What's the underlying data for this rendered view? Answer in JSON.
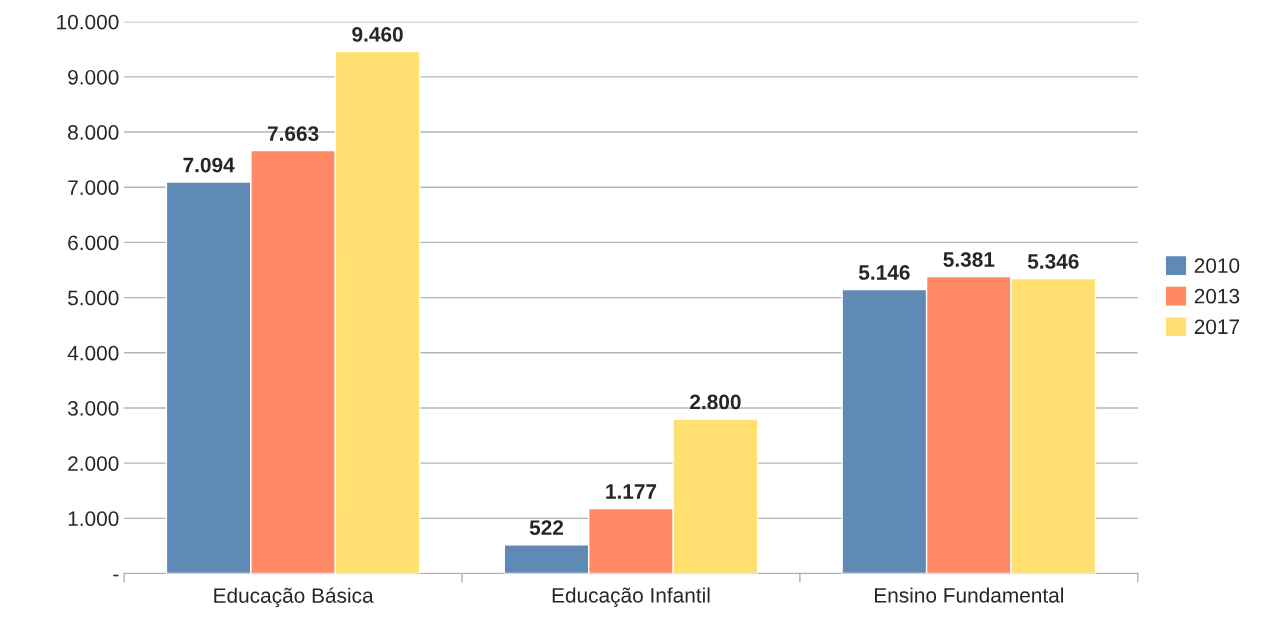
{
  "chart_data": {
    "type": "bar",
    "categories": [
      "Educação Básica",
      "Educação Infantil",
      "Ensino Fundamental"
    ],
    "series": [
      {
        "name": "2010",
        "color": "#5f8ab5",
        "values": [
          7094,
          522,
          5146
        ],
        "value_labels": [
          "7.094",
          "522",
          "5.146"
        ]
      },
      {
        "name": "2013",
        "color": "#ff8a65",
        "values": [
          7663,
          1177,
          5381
        ],
        "value_labels": [
          "7.663",
          "1.177",
          "5.381"
        ]
      },
      {
        "name": "2017",
        "color": "#ffe070",
        "values": [
          9460,
          2800,
          5346
        ],
        "value_labels": [
          "9.460",
          "2.800",
          "5.346"
        ]
      }
    ],
    "ylim": [
      0,
      10000
    ],
    "yticks": [
      {
        "value": 0,
        "label": "-"
      },
      {
        "value": 1000,
        "label": "1.000"
      },
      {
        "value": 2000,
        "label": "2.000"
      },
      {
        "value": 3000,
        "label": "3.000"
      },
      {
        "value": 4000,
        "label": "4.000"
      },
      {
        "value": 5000,
        "label": "5.000"
      },
      {
        "value": 6000,
        "label": "6.000"
      },
      {
        "value": 7000,
        "label": "7.000"
      },
      {
        "value": 8000,
        "label": "8.000"
      },
      {
        "value": 9000,
        "label": "9.000"
      },
      {
        "value": 10000,
        "label": "10.000"
      }
    ],
    "grid": "y",
    "legend": "right"
  }
}
